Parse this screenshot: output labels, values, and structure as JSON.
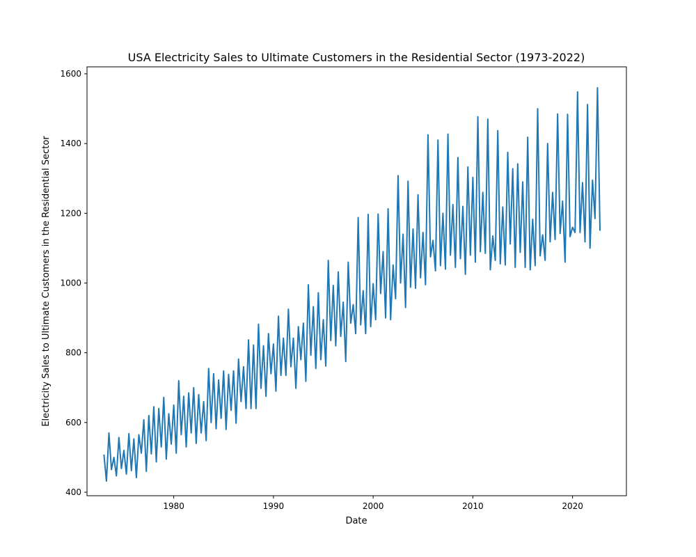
{
  "chart_data": {
    "type": "line",
    "title": "USA Electricity Sales to Ultimate Customers in the Residential Sector (1973-2022)",
    "xlabel": "Date",
    "ylabel": "Electricity Sales to Ultimate Customers in the Residential Sector",
    "x_ticks": [
      "1980",
      "1990",
      "2000",
      "2010",
      "2020"
    ],
    "y_ticks": [
      "400",
      "600",
      "800",
      "1000",
      "1200",
      "1400",
      "1600"
    ],
    "xlim": [
      1971.3,
      2025.4
    ],
    "ylim": [
      390,
      1620
    ],
    "grid": false,
    "series_color": "#1f77b4",
    "series": [
      {
        "x": [
          1973.0,
          1973.25,
          1973.5,
          1973.75,
          1974.0,
          1974.25,
          1974.5,
          1974.75,
          1975.0,
          1975.25,
          1975.5,
          1975.75,
          1976.0,
          1976.25,
          1976.5,
          1976.75,
          1977.0,
          1977.25,
          1977.5,
          1977.75,
          1978.0,
          1978.25,
          1978.5,
          1978.75,
          1979.0,
          1979.25,
          1979.5,
          1979.75,
          1980.0,
          1980.25,
          1980.5,
          1980.75,
          1981.0,
          1981.25,
          1981.5,
          1981.75,
          1982.0,
          1982.25,
          1982.5,
          1982.75,
          1983.0,
          1983.25,
          1983.5,
          1983.75,
          1984.0,
          1984.25,
          1984.5,
          1984.75,
          1985.0,
          1985.25,
          1985.5,
          1985.75,
          1986.0,
          1986.25,
          1986.5,
          1986.75,
          1987.0,
          1987.25,
          1987.5,
          1987.75,
          1988.0,
          1988.25,
          1988.5,
          1988.75,
          1989.0,
          1989.25,
          1989.5,
          1989.75,
          1990.0,
          1990.25,
          1990.5,
          1990.75,
          1991.0,
          1991.25,
          1991.5,
          1991.75,
          1992.0,
          1992.25,
          1992.5,
          1992.75,
          1993.0,
          1993.25,
          1993.5,
          1993.75,
          1994.0,
          1994.25,
          1994.5,
          1994.75,
          1995.0,
          1995.25,
          1995.5,
          1995.75,
          1996.0,
          1996.25,
          1996.5,
          1996.75,
          1997.0,
          1997.25,
          1997.5,
          1997.75,
          1998.0,
          1998.25,
          1998.5,
          1998.75,
          1999.0,
          1999.25,
          1999.5,
          1999.75,
          2000.0,
          2000.25,
          2000.5,
          2000.75,
          2001.0,
          2001.25,
          2001.5,
          2001.75,
          2002.0,
          2002.25,
          2002.5,
          2002.75,
          2003.0,
          2003.25,
          2003.5,
          2003.75,
          2004.0,
          2004.25,
          2004.5,
          2004.75,
          2005.0,
          2005.25,
          2005.5,
          2005.75,
          2006.0,
          2006.25,
          2006.5,
          2006.75,
          2007.0,
          2007.25,
          2007.5,
          2007.75,
          2008.0,
          2008.25,
          2008.5,
          2008.75,
          2009.0,
          2009.25,
          2009.5,
          2009.75,
          2010.0,
          2010.25,
          2010.5,
          2010.75,
          2011.0,
          2011.25,
          2011.5,
          2011.75,
          2012.0,
          2012.25,
          2012.5,
          2012.75,
          2013.0,
          2013.25,
          2013.5,
          2013.75,
          2014.0,
          2014.25,
          2014.5,
          2014.75,
          2015.0,
          2015.25,
          2015.5,
          2015.75,
          2016.0,
          2016.25,
          2016.5,
          2016.75,
          2017.0,
          2017.25,
          2017.5,
          2017.75,
          2018.0,
          2018.25,
          2018.5,
          2018.75,
          2019.0,
          2019.25,
          2019.5,
          2019.75,
          2020.0,
          2020.25,
          2020.5,
          2020.75,
          2021.0,
          2021.25,
          2021.5,
          2021.75,
          2022.0,
          2022.25,
          2022.5,
          2022.75
        ],
        "y": [
          508,
          432,
          570,
          465,
          500,
          447,
          557,
          468,
          520,
          452,
          568,
          462,
          553,
          442,
          565,
          512,
          608,
          460,
          620,
          510,
          645,
          487,
          640,
          530,
          672,
          495,
          625,
          538,
          650,
          512,
          720,
          565,
          675,
          530,
          685,
          570,
          700,
          540,
          680,
          570,
          660,
          548,
          755,
          600,
          740,
          582,
          722,
          612,
          748,
          580,
          738,
          635,
          748,
          598,
          782,
          660,
          760,
          640,
          837,
          640,
          822,
          640,
          882,
          698,
          820,
          675,
          855,
          740,
          825,
          690,
          905,
          735,
          842,
          735,
          925,
          760,
          842,
          698,
          875,
          780,
          885,
          718,
          995,
          793,
          932,
          755,
          972,
          780,
          895,
          762,
          1065,
          835,
          993,
          820,
          1032,
          847,
          945,
          775,
          1060,
          885,
          938,
          855,
          1188,
          880,
          978,
          855,
          1197,
          875,
          998,
          895,
          1198,
          970,
          1090,
          900,
          1213,
          895,
          1052,
          955,
          1308,
          1000,
          1140,
          930,
          1292,
          988,
          1155,
          985,
          1253,
          1015,
          1145,
          995,
          1425,
          1075,
          1122,
          1035,
          1410,
          1050,
          1200,
          1040,
          1427,
          1080,
          1225,
          1045,
          1360,
          1070,
          1220,
          1025,
          1333,
          1080,
          1303,
          1060,
          1477,
          1090,
          1260,
          1085,
          1470,
          1038,
          1135,
          1065,
          1437,
          1055,
          1218,
          1052,
          1375,
          1112,
          1328,
          1045,
          1342,
          1088,
          1290,
          1045,
          1418,
          1038,
          1183,
          1050,
          1500,
          1078,
          1138,
          1065,
          1400,
          1118,
          1260,
          1125,
          1485,
          1142,
          1235,
          1060,
          1484,
          1133,
          1160,
          1145,
          1548,
          1145,
          1288,
          1118,
          1512,
          1100,
          1295,
          1185,
          1560,
          1150
        ]
      }
    ]
  }
}
